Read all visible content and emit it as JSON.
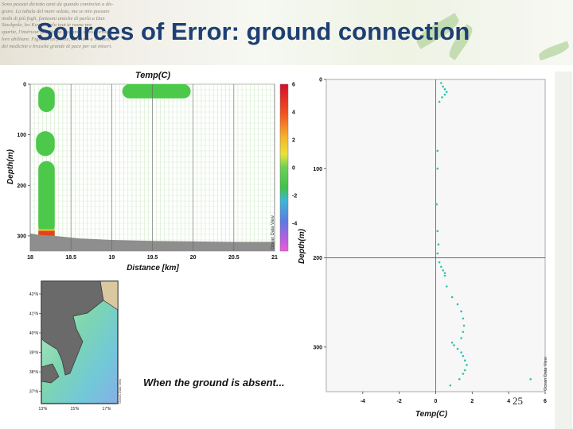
{
  "slide": {
    "title": "Sources of Error: ground connection",
    "caption": "When the ground is absent...",
    "page_number": "25",
    "banner_text": "Sono passati diciotto anni da quando cominciai a dis-\ngrare. La tabula del mare salata, ma se mio passato\nmolti di più fogli, fantasmi amiche di parla a Dan\nStockpole, les Kuyruk cela tout te rasne pre\nspartie, l'intérieur fait Simba Dagama, sono partita a\nlore abilitare. Figlie di un fronte, cacciato a Toddeo, un\ndei medicine e bruscke grande di pace per sui miseri."
  },
  "watermark": "Ocean Data View",
  "chart_data": [
    {
      "type": "heatmap",
      "title": "Temp(C)",
      "xlabel": "Distance [km]",
      "ylabel": "Depth(m)",
      "xlim": [
        18,
        21
      ],
      "ylim": [
        0,
        330
      ],
      "y_inverted": true,
      "x_ticks": [
        "18",
        "18.5",
        "19",
        "19.5",
        "20",
        "20.5",
        "21"
      ],
      "y_ticks": [
        "0",
        "100",
        "200",
        "300"
      ],
      "colorbar": {
        "ticks": [
          "6",
          "4",
          "2",
          "0",
          "-2",
          "-4"
        ],
        "range": [
          -6,
          6
        ]
      },
      "blobs": [
        {
          "x0": 18.1,
          "x1": 18.3,
          "y0": 5,
          "y1": 55
        },
        {
          "x0": 18.07,
          "x1": 18.3,
          "y0": 93,
          "y1": 142
        },
        {
          "x0": 18.1,
          "x1": 18.3,
          "y0": 152,
          "y1": 297
        },
        {
          "x0": 19.13,
          "x1": 19.97,
          "y0": 0,
          "y1": 28
        },
        {
          "x0": 19.13,
          "x1": 20.9,
          "y0": 312,
          "y1": 330
        }
      ],
      "hot_band": {
        "x0": 18.1,
        "x1": 18.3,
        "y0": 290,
        "y1": 300
      },
      "ground_depths": [
        [
          18,
          295
        ],
        [
          18.1,
          298
        ],
        [
          18.3,
          300
        ],
        [
          18.6,
          305
        ],
        [
          19,
          308
        ],
        [
          19.5,
          310
        ],
        [
          20,
          311
        ],
        [
          20.5,
          312
        ],
        [
          21,
          312
        ]
      ]
    },
    {
      "type": "scatter",
      "title": "",
      "xlabel": "Temp(C)",
      "ylabel": "Depth(m)",
      "xlim": [
        -6,
        6
      ],
      "ylim": [
        0,
        350
      ],
      "y_inverted": true,
      "x_ticks": [
        "-4",
        "-2",
        "0",
        "2",
        "4",
        "6"
      ],
      "y_ticks": [
        "0",
        "100",
        "200",
        "300"
      ],
      "x": [
        0.3,
        0.4,
        0.5,
        0.6,
        0.5,
        0.35,
        0.2,
        0.1,
        0.1,
        0.05,
        0.1,
        0.15,
        0.1,
        0.2,
        0.3,
        0.4,
        0.5,
        0.5,
        0.6,
        0.9,
        1.2,
        1.4,
        1.5,
        1.55,
        1.5,
        1.4,
        0.9,
        1.0,
        1.2,
        1.4,
        1.5,
        1.6,
        1.7,
        1.6,
        1.5,
        1.3,
        0.8,
        5.2
      ],
      "y": [
        4,
        8,
        11,
        14,
        17,
        20,
        25,
        80,
        100,
        140,
        170,
        185,
        195,
        205,
        210,
        214,
        217,
        220,
        232,
        244,
        252,
        260,
        268,
        276,
        283,
        290,
        295,
        298,
        302,
        306,
        310,
        315,
        320,
        326,
        330,
        336,
        343,
        336
      ]
    },
    {
      "type": "heatmap",
      "title": "",
      "y_ticks": [
        "42°N",
        "41°N",
        "40°N",
        "39°N",
        "38°N",
        "37°N"
      ],
      "x_ticks": [
        "13°E",
        "15°E",
        "17°E"
      ]
    }
  ]
}
